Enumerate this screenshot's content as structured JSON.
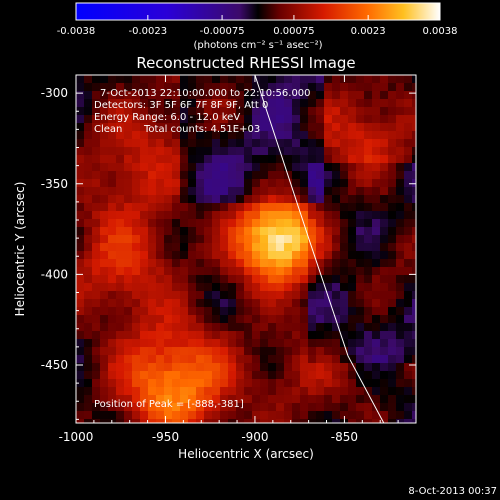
{
  "chart_data": {
    "type": "heatmap",
    "title": "Reconstructed RHESSI Image",
    "xlabel": "Heliocentric X (arcsec)",
    "ylabel": "Heliocentric Y (arcsec)",
    "xlim": [
      -1000,
      -810
    ],
    "ylim": [
      -482,
      -290
    ],
    "xticks": [
      "-1000",
      "-950",
      "-900",
      "-850"
    ],
    "yticks": [
      "-300",
      "-350",
      "-400",
      "-450"
    ],
    "colorbar": {
      "units": "(photons cm⁻² s⁻¹ asec⁻²)",
      "ticks": [
        "-0.0038",
        "-0.0023",
        "-0.00075",
        "0.00075",
        "0.0023",
        "0.0038"
      ],
      "range": [
        -0.0038,
        0.0038
      ]
    },
    "annotations": {
      "time_range": "7-Oct-2013 22:10:00.000 to 22:10:56.000",
      "detectors": "Detectors: 3F 5F 6F 7F 8F 9F, Att 0",
      "energy_range": "Energy Range: 6.0 - 12.0 keV",
      "method": "Clean",
      "total_counts": "Total counts: 4.51E+03",
      "peak_position": "Position of Peak = [-888,-381]"
    },
    "peak": [
      -888,
      -381
    ],
    "sources": [
      {
        "x": -888,
        "y": -381,
        "value": 0.0038
      },
      {
        "x": -945,
        "y": -460,
        "value": 0.0026
      },
      {
        "x": -975,
        "y": -395,
        "value": 0.0014
      },
      {
        "x": -968,
        "y": -338,
        "value": 0.0012
      },
      {
        "x": -840,
        "y": -325,
        "value": 0.0013
      },
      {
        "x": -818,
        "y": -395,
        "value": 0.0008
      },
      {
        "x": -870,
        "y": -455,
        "value": 0.0008
      },
      {
        "x": -920,
        "y": -300,
        "value": 0.0009
      }
    ],
    "limb": [
      [
        -900,
        -290
      ],
      [
        -870,
        -380
      ],
      [
        -848,
        -445
      ],
      [
        -828,
        -482
      ]
    ]
  },
  "footer": {
    "date": "8-Oct-2013 00:37"
  }
}
